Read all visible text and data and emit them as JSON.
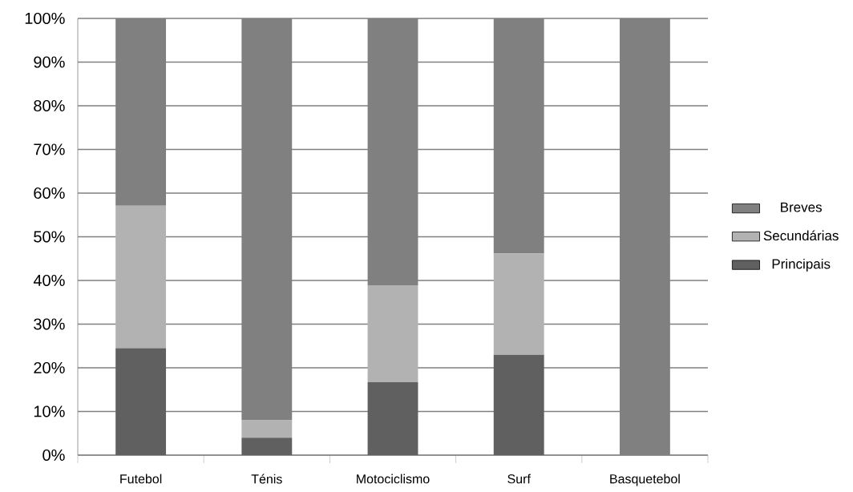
{
  "chart_data": {
    "type": "bar",
    "stacked": true,
    "categories": [
      "Futebol",
      "Ténis",
      "Motociclismo",
      "Surf",
      "Basquetebol"
    ],
    "series": [
      {
        "name": "Principais",
        "color": "#606060",
        "values": [
          24.5,
          4,
          16.7,
          23,
          0
        ]
      },
      {
        "name": "Secundárias",
        "color": "#b2b2b2",
        "values": [
          32.6,
          4,
          22.2,
          23.2,
          0
        ]
      },
      {
        "name": "Breves",
        "color": "#808080",
        "values": [
          42.9,
          92,
          61.1,
          53.8,
          100
        ]
      }
    ],
    "ylim": [
      0,
      100
    ],
    "yticks": [
      {
        "value": 0,
        "label": "0%"
      },
      {
        "value": 10,
        "label": "10%"
      },
      {
        "value": 20,
        "label": "20%"
      },
      {
        "value": 30,
        "label": "30%"
      },
      {
        "value": 40,
        "label": "40%"
      },
      {
        "value": 50,
        "label": "50%"
      },
      {
        "value": 60,
        "label": "60%"
      },
      {
        "value": 70,
        "label": "70%"
      },
      {
        "value": 80,
        "label": "80%"
      },
      {
        "value": 90,
        "label": "90%"
      },
      {
        "value": 100,
        "label": "100%"
      }
    ],
    "grid": "y",
    "legend": "right"
  }
}
